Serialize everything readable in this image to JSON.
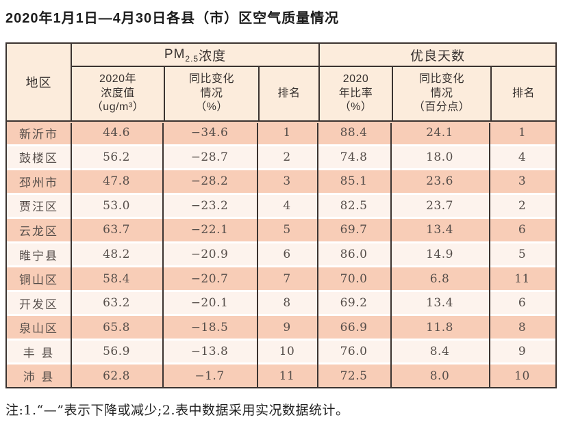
{
  "page": {
    "title": "2020年1月1日—4月30日各县（市）区空气质量情况",
    "footnote": "注:1.“—”表示下降或减少;2.表中数据采用实况数据统计。"
  },
  "colors": {
    "border_dark": "#3b3330",
    "header_bg": "#fcecdc",
    "row_odd": "#f8cdb7",
    "row_even": "#fdf3ed"
  },
  "table": {
    "region_header": "地区",
    "pm_group": {
      "prefix": "PM",
      "sub": "2.5",
      "suffix": " 浓度"
    },
    "good_group": "优良天数",
    "sub_headers": {
      "pm_value": "2020年\n浓度值\n（ug/m³）",
      "pm_change": "同比变化\n情况\n（%）",
      "pm_rank": "排名",
      "good_ratio": "2020\n年比率\n（%）",
      "good_change": "同比变化\n情况\n（百分点）",
      "good_rank": "排名"
    },
    "rows": [
      {
        "region": "新沂市",
        "pm_value": "44.6",
        "pm_change": "−34.6",
        "pm_rank": "1",
        "good_ratio": "88.4",
        "good_change": "24.1",
        "good_rank": "1"
      },
      {
        "region": "鼓楼区",
        "pm_value": "56.2",
        "pm_change": "−28.7",
        "pm_rank": "2",
        "good_ratio": "74.8",
        "good_change": "18.0",
        "good_rank": "4"
      },
      {
        "region": "邳州市",
        "pm_value": "47.8",
        "pm_change": "−28.2",
        "pm_rank": "3",
        "good_ratio": "85.1",
        "good_change": "23.6",
        "good_rank": "3"
      },
      {
        "region": "贾汪区",
        "pm_value": "53.0",
        "pm_change": "−23.2",
        "pm_rank": "4",
        "good_ratio": "82.5",
        "good_change": "23.7",
        "good_rank": "2"
      },
      {
        "region": "云龙区",
        "pm_value": "63.7",
        "pm_change": "−22.1",
        "pm_rank": "5",
        "good_ratio": "69.7",
        "good_change": "13.4",
        "good_rank": "6"
      },
      {
        "region": "睢宁县",
        "pm_value": "48.2",
        "pm_change": "−20.9",
        "pm_rank": "6",
        "good_ratio": "86.0",
        "good_change": "14.9",
        "good_rank": "5"
      },
      {
        "region": "铜山区",
        "pm_value": "58.4",
        "pm_change": "−20.7",
        "pm_rank": "7",
        "good_ratio": "70.0",
        "good_change": "6.8",
        "good_rank": "11"
      },
      {
        "region": "开发区",
        "pm_value": "63.2",
        "pm_change": "−20.1",
        "pm_rank": "8",
        "good_ratio": "69.2",
        "good_change": "13.4",
        "good_rank": "6"
      },
      {
        "region": "泉山区",
        "pm_value": "65.8",
        "pm_change": "−18.5",
        "pm_rank": "9",
        "good_ratio": "66.9",
        "good_change": "11.8",
        "good_rank": "8"
      },
      {
        "region": "丰 县",
        "pm_value": "56.9",
        "pm_change": "−13.8",
        "pm_rank": "10",
        "good_ratio": "76.0",
        "good_change": "8.4",
        "good_rank": "9"
      },
      {
        "region": "沛 县",
        "pm_value": "62.8",
        "pm_change": "−1.7",
        "pm_rank": "11",
        "good_ratio": "72.5",
        "good_change": "8.0",
        "good_rank": "10"
      }
    ]
  }
}
